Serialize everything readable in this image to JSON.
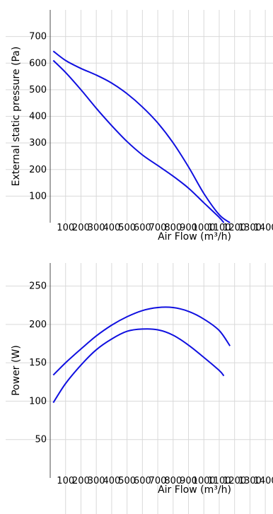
{
  "chart_data": [
    {
      "type": "line",
      "title": "",
      "xlabel": "Air Flow (m³/h)",
      "ylabel": "External static pressure (Pa)",
      "xlim": [
        0,
        1450
      ],
      "ylim": [
        0,
        800
      ],
      "grid": true,
      "x_ticks": [
        "100",
        "200",
        "300",
        "400",
        "500",
        "600",
        "700",
        "800",
        "900",
        "1000",
        "1100",
        "1200",
        "1300",
        "1400"
      ],
      "y_ticks": [
        "100",
        "200",
        "300",
        "400",
        "500",
        "600",
        "700"
      ],
      "series": [
        {
          "x": [
            20,
            100,
            200,
            300,
            400,
            500,
            600,
            700,
            800,
            900,
            1000,
            1100,
            1170
          ],
          "y": [
            645,
            610,
            580,
            555,
            525,
            485,
            435,
            375,
            300,
            210,
            110,
            30,
            0
          ]
        },
        {
          "x": [
            20,
            100,
            200,
            300,
            400,
            500,
            600,
            700,
            800,
            900,
            1000,
            1100,
            1130
          ],
          "y": [
            610,
            565,
            500,
            430,
            365,
            305,
            255,
            215,
            175,
            130,
            75,
            20,
            0
          ]
        }
      ]
    },
    {
      "type": "line",
      "title": "",
      "xlabel": "Air Flow (m³/h)",
      "ylabel": "Power (W)",
      "xlim": [
        0,
        1450
      ],
      "ylim": [
        0,
        280
      ],
      "grid": true,
      "x_ticks": [
        "100",
        "200",
        "300",
        "400",
        "500",
        "600",
        "700",
        "800",
        "900",
        "1000",
        "1100",
        "1200",
        "1300",
        "1400"
      ],
      "y_ticks": [
        "50",
        "100",
        "150",
        "200",
        "250"
      ],
      "series": [
        {
          "x": [
            20,
            100,
            200,
            300,
            400,
            500,
            600,
            700,
            800,
            900,
            1000,
            1100,
            1170
          ],
          "y": [
            134,
            150,
            168,
            185,
            199,
            210,
            218,
            222,
            222,
            217,
            207,
            192,
            172
          ]
        },
        {
          "x": [
            20,
            100,
            200,
            300,
            400,
            500,
            600,
            700,
            800,
            900,
            1000,
            1100,
            1130
          ],
          "y": [
            98,
            123,
            147,
            167,
            181,
            191,
            194,
            193,
            186,
            173,
            157,
            140,
            133
          ]
        }
      ]
    }
  ]
}
